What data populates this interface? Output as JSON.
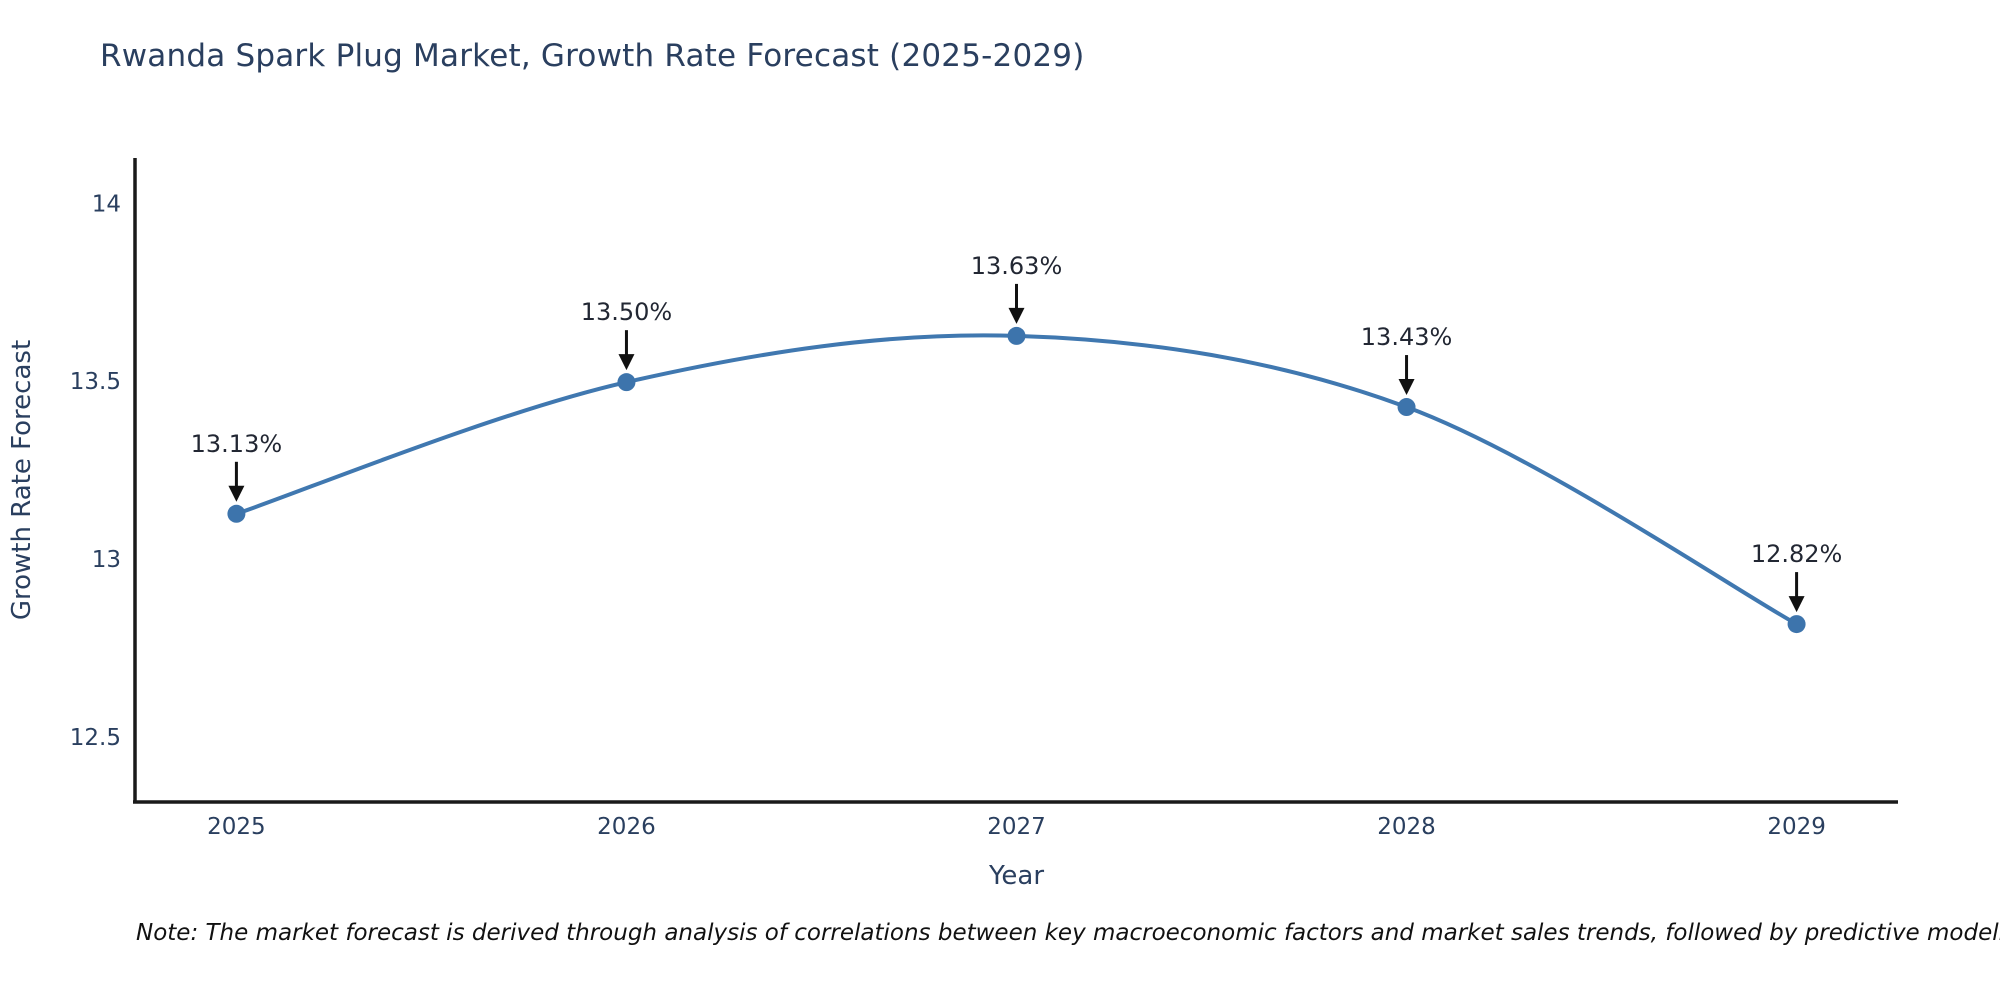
{
  "figure": {
    "title": "Rwanda Spark Plug Market, Growth Rate Forecast (2025-2029)",
    "note": "Note: The market forecast is derived through analysis of correlations between key macroeconomic factors and market sales trends, followed by predictive modeling to project future sal"
  },
  "chart_data": {
    "type": "line",
    "title": "Rwanda Spark Plug Market, Growth Rate Forecast (2025-2029)",
    "xlabel": "Year",
    "ylabel": "Growth Rate Forecast",
    "x": [
      2025,
      2026,
      2027,
      2028,
      2029
    ],
    "y": [
      13.13,
      13.5,
      13.63,
      13.43,
      12.82
    ],
    "point_labels": [
      "13.13%",
      "13.50%",
      "13.63%",
      "13.43%",
      "12.82%"
    ],
    "xtick_labels": [
      "2025",
      "2026",
      "2027",
      "2028",
      "2029"
    ],
    "yticks": [
      12.5,
      13,
      13.5,
      14
    ],
    "ytick_labels": [
      "12.5",
      "13",
      "13.5",
      "14"
    ],
    "xlim": [
      2024.74,
      2029.26
    ],
    "ylim": [
      12.32,
      14.13
    ],
    "grid": false,
    "legend": "none",
    "line_shape": "spline",
    "colors": {
      "line": "#4078b0",
      "marker": "#3d74ac",
      "axis": "#1a1a1a",
      "tick_text": "#2a3f5f",
      "axis_title_text": "#2a3f5f",
      "annotation_text": "#222733",
      "arrow": "#111111",
      "background": "#ffffff"
    }
  }
}
